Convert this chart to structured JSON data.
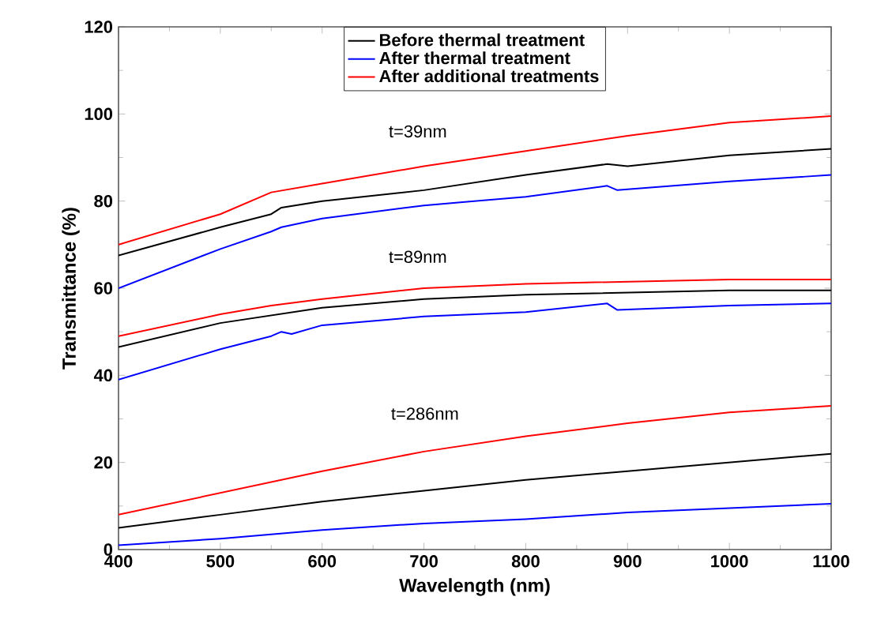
{
  "chart_data": {
    "type": "line",
    "xlabel": "Wavelength (nm)",
    "ylabel": "Transmittance (%)",
    "xlim": [
      400,
      1100
    ],
    "ylim": [
      0,
      120
    ],
    "xticks": [
      400,
      500,
      600,
      700,
      800,
      900,
      1000,
      1100
    ],
    "yticks": [
      0,
      20,
      40,
      60,
      80,
      100,
      120
    ],
    "legend": "top",
    "grid": false,
    "marker": "none",
    "line_style": "solid",
    "series": [
      {
        "name": "Before thermal treatment",
        "color": "#000000",
        "x": [
          400,
          500,
          550,
          560,
          600,
          700,
          800,
          880,
          900,
          1000,
          1100
        ],
        "values": [
          67.5,
          74,
          77,
          78.5,
          80,
          82.5,
          86,
          88.5,
          88,
          90.5,
          92
        ]
      },
      {
        "name": "After thermal treatment",
        "color": "#0000ff",
        "x": [
          400,
          500,
          550,
          560,
          600,
          700,
          800,
          880,
          890,
          1000,
          1100
        ],
        "values": [
          60,
          69,
          73,
          74,
          76,
          79,
          81,
          83.5,
          82.5,
          84.5,
          86
        ]
      },
      {
        "name": "After additional treatments",
        "color": "#ff0000",
        "x": [
          400,
          500,
          550,
          600,
          700,
          800,
          900,
          1000,
          1100
        ],
        "values": [
          70,
          77,
          82,
          84,
          88,
          91.5,
          95,
          98,
          99.5
        ]
      },
      {
        "color": "#000000",
        "x": [
          400,
          500,
          600,
          700,
          800,
          900,
          1000,
          1100
        ],
        "values": [
          46.5,
          52,
          55.5,
          57.5,
          58.5,
          59,
          59.5,
          59.5
        ]
      },
      {
        "color": "#0000ff",
        "x": [
          400,
          500,
          550,
          560,
          570,
          600,
          700,
          800,
          880,
          890,
          1000,
          1100
        ],
        "values": [
          39,
          46,
          49,
          50,
          49.5,
          51.5,
          53.5,
          54.5,
          56.5,
          55,
          56,
          56.5
        ]
      },
      {
        "color": "#ff0000",
        "x": [
          400,
          500,
          550,
          600,
          700,
          800,
          900,
          1000,
          1100
        ],
        "values": [
          49,
          54,
          56,
          57.5,
          60,
          61,
          61.5,
          62,
          62
        ]
      },
      {
        "color": "#000000",
        "x": [
          400,
          500,
          600,
          700,
          800,
          900,
          1000,
          1100
        ],
        "values": [
          5,
          8,
          11,
          13.5,
          16,
          18,
          20,
          22
        ]
      },
      {
        "color": "#0000ff",
        "x": [
          400,
          500,
          600,
          700,
          800,
          900,
          1000,
          1100
        ],
        "values": [
          1,
          2.5,
          4.5,
          6,
          7,
          8.5,
          9.5,
          10.5
        ]
      },
      {
        "color": "#ff0000",
        "x": [
          400,
          500,
          600,
          700,
          800,
          900,
          1000,
          1100
        ],
        "values": [
          8,
          13,
          18,
          22.5,
          26,
          29,
          31.5,
          33
        ]
      }
    ],
    "annotations": [
      "t=39nm",
      "t=89nm",
      "t=286nm"
    ]
  }
}
